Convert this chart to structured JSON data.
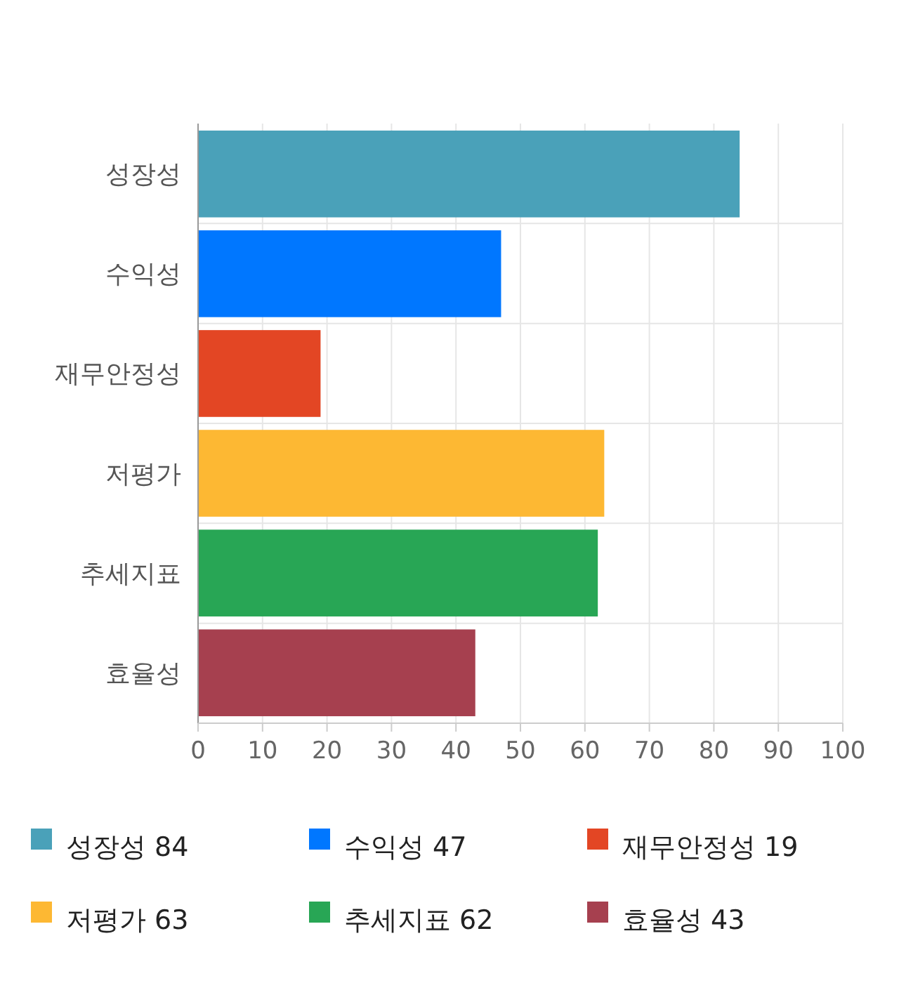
{
  "chart_data": {
    "type": "bar",
    "orientation": "horizontal",
    "categories": [
      "성장성",
      "수익성",
      "재무안정성",
      "저평가",
      "추세지표",
      "효율성"
    ],
    "values": [
      84,
      47,
      19,
      63,
      62,
      43
    ],
    "colors": [
      "#4aa1b9",
      "#0077ff",
      "#e34624",
      "#fdb833",
      "#28a655",
      "#a6404f"
    ],
    "xlim": [
      0,
      100
    ],
    "xticks": [
      0,
      10,
      20,
      30,
      40,
      50,
      60,
      70,
      80,
      90,
      100
    ],
    "grid": true,
    "annotations": [
      "성장성 84",
      "수익성 47",
      "재무안정성 19",
      "저평가 63",
      "추세지표 62",
      "효율성 43"
    ]
  }
}
